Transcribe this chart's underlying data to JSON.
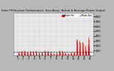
{
  "title": "Solar PV/Inverter Performance  East Array  Actual & Average Power Output",
  "bg_color": "#b8b8b8",
  "plot_bg_color": "#e8e8e8",
  "bar_color": "#dd0000",
  "avg_line_color": "#0000cc",
  "avg_line_color2": "#ff0000",
  "grid_color": "#999999",
  "ylim": [
    0,
    880
  ],
  "yticks": [
    100,
    200,
    300,
    400,
    500,
    600,
    700,
    800
  ],
  "avg_value": 75,
  "num_points": 400,
  "legend_labels": [
    "Watts Per",
    "Watts Ave"
  ],
  "title_color": "#000000",
  "tick_color": "#000000"
}
